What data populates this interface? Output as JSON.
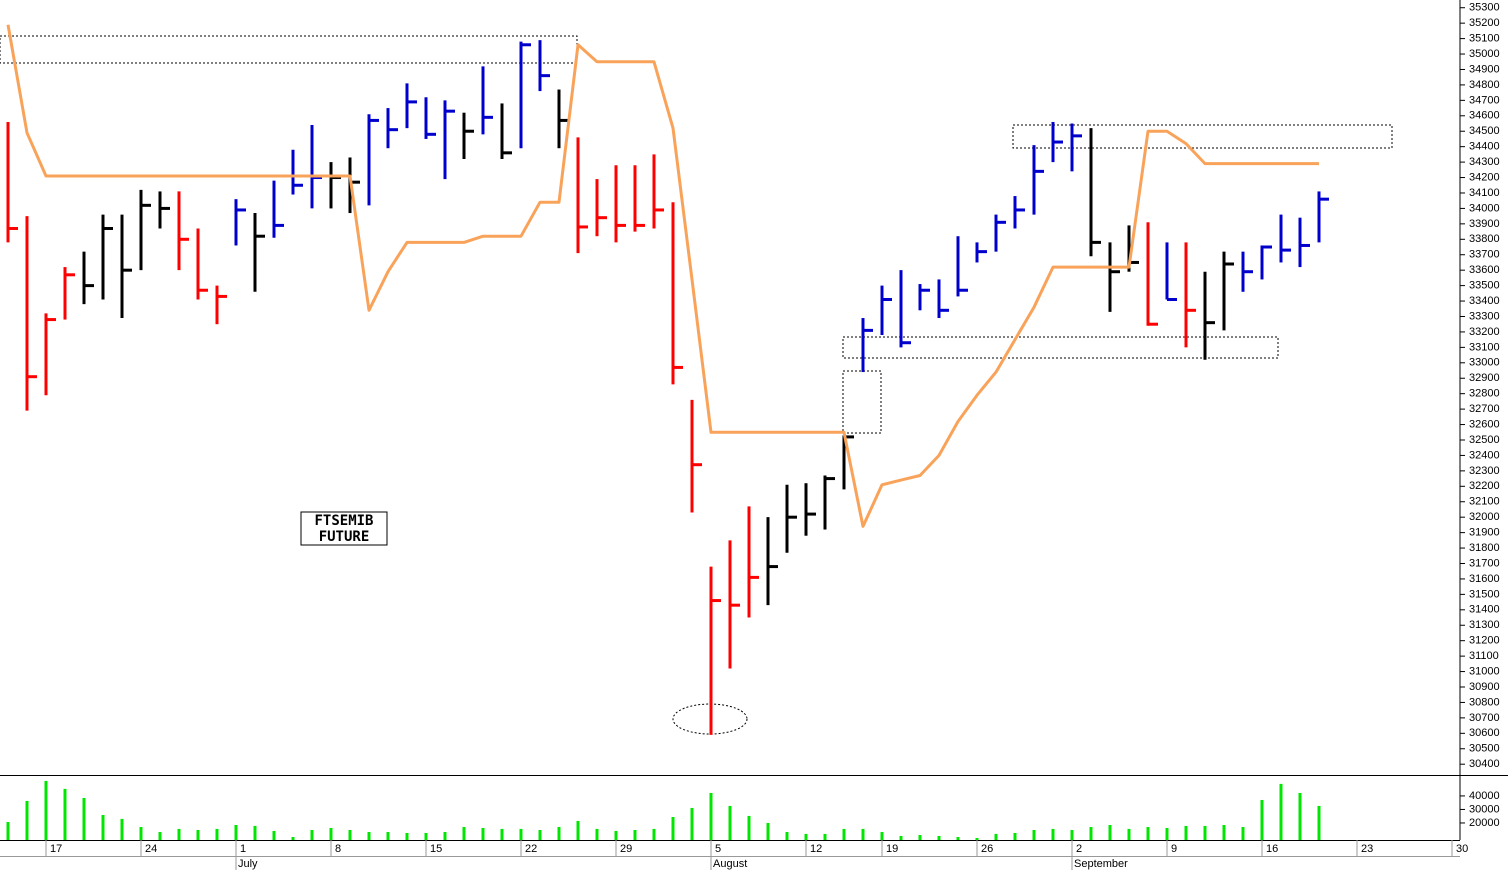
{
  "chart_data": [
    {
      "type": "ohlc",
      "annotation": [
        "FTSEMIB",
        "FUTURE"
      ],
      "categories": [
        null,
        null,
        "17",
        null,
        null,
        null,
        null,
        "24",
        null,
        null,
        null,
        null,
        "1",
        null,
        null,
        null,
        null,
        "8",
        null,
        null,
        null,
        null,
        "15",
        null,
        null,
        null,
        null,
        "22",
        null,
        null,
        null,
        null,
        "29",
        null,
        null,
        null,
        null,
        "5",
        null,
        null,
        null,
        null,
        "12",
        null,
        null,
        null,
        "19",
        null,
        null,
        null,
        null,
        "26",
        null,
        null,
        null,
        null,
        "2",
        null,
        null,
        null,
        null,
        "9",
        null,
        null,
        null,
        null,
        "16",
        null,
        null,
        null,
        null,
        "23",
        null,
        null,
        null,
        null,
        "30"
      ],
      "month_labels": [
        null,
        null,
        null,
        null,
        null,
        null,
        null,
        null,
        null,
        null,
        null,
        null,
        "July",
        null,
        null,
        null,
        null,
        null,
        null,
        null,
        null,
        null,
        null,
        null,
        null,
        null,
        null,
        null,
        null,
        null,
        null,
        null,
        null,
        null,
        null,
        null,
        null,
        "August",
        null,
        null,
        null,
        null,
        null,
        null,
        null,
        null,
        null,
        null,
        null,
        null,
        null,
        null,
        null,
        null,
        null,
        null,
        "September",
        null,
        null,
        null,
        null,
        null,
        null,
        null,
        null,
        null,
        null,
        null,
        null,
        null,
        null,
        null,
        null,
        null,
        null,
        null
      ],
      "high": [
        34560,
        33950,
        33320,
        33620,
        33720,
        33960,
        33960,
        34120,
        34110,
        34110,
        33870,
        33500,
        34060,
        33970,
        34180,
        34380,
        34540,
        34300,
        34330,
        34610,
        34650,
        34810,
        34720,
        34700,
        34620,
        34920,
        34680,
        35080,
        35090,
        34770,
        34460,
        34190,
        34280,
        34280,
        34350,
        34040,
        32760,
        31680,
        31850,
        32070,
        32000,
        32210,
        32220,
        32270,
        32530,
        33290,
        33500,
        33600,
        33510,
        33540,
        33820,
        33780,
        33960,
        34080,
        34410,
        34560,
        34550,
        34520,
        33780,
        33890,
        33910,
        33780,
        33780,
        33590,
        33720,
        33720,
        33760,
        33960,
        33940,
        34110,
        null,
        null,
        null,
        null,
        null,
        null,
        null
      ],
      "low": [
        33780,
        32690,
        32790,
        33280,
        33380,
        33410,
        33290,
        33600,
        33870,
        33600,
        33410,
        33250,
        33760,
        33460,
        33810,
        34090,
        34000,
        34000,
        33970,
        34020,
        34390,
        34520,
        34450,
        34190,
        34320,
        34480,
        34320,
        34390,
        34760,
        34390,
        33710,
        33820,
        33780,
        33850,
        33870,
        32860,
        32030,
        30590,
        31020,
        31350,
        31430,
        31770,
        31880,
        31920,
        32180,
        32940,
        33180,
        33100,
        33340,
        33290,
        33430,
        33650,
        33720,
        33870,
        33960,
        34300,
        34240,
        33690,
        33330,
        33590,
        33240,
        33410,
        33100,
        33020,
        33210,
        33460,
        33540,
        33650,
        33620,
        33780,
        null,
        null,
        null,
        null,
        null,
        null,
        null
      ],
      "close": [
        33870,
        32910,
        33280,
        33570,
        33500,
        33870,
        33600,
        34020,
        34000,
        33800,
        33470,
        33430,
        33990,
        33820,
        33890,
        34150,
        34200,
        34200,
        34170,
        34570,
        34510,
        34690,
        34480,
        34630,
        34500,
        34590,
        34360,
        35060,
        34860,
        34570,
        33880,
        33940,
        33890,
        33890,
        33990,
        32970,
        32340,
        31460,
        31430,
        31610,
        31680,
        32000,
        32020,
        32250,
        32520,
        33210,
        33410,
        33130,
        33470,
        33340,
        33470,
        33720,
        33910,
        33990,
        34240,
        34430,
        34470,
        33780,
        33590,
        33650,
        33250,
        33410,
        33340,
        33260,
        33640,
        33590,
        33750,
        33730,
        33760,
        34060,
        null,
        null,
        null,
        null,
        null,
        null,
        null
      ],
      "colors": [
        "#ff0000",
        "#ff0000",
        "#ff0000",
        "#ff0000",
        "#000000",
        "#000000",
        "#000000",
        "#000000",
        "#000000",
        "#ff0000",
        "#ff0000",
        "#ff0000",
        "#0000cc",
        "#000000",
        "#0000cc",
        "#0000cc",
        "#0000cc",
        "#000000",
        "#000000",
        "#0000cc",
        "#0000cc",
        "#0000cc",
        "#0000cc",
        "#0000cc",
        "#000000",
        "#0000cc",
        "#000000",
        "#0000cc",
        "#0000cc",
        "#000000",
        "#ff0000",
        "#ff0000",
        "#ff0000",
        "#ff0000",
        "#ff0000",
        "#ff0000",
        "#ff0000",
        "#ff0000",
        "#ff0000",
        "#ff0000",
        "#000000",
        "#000000",
        "#000000",
        "#000000",
        "#000000",
        "#0000cc",
        "#0000cc",
        "#0000cc",
        "#0000cc",
        "#0000cc",
        "#0000cc",
        "#0000cc",
        "#0000cc",
        "#0000cc",
        "#0000cc",
        "#0000cc",
        "#0000cc",
        "#000000",
        "#000000",
        "#000000",
        "#ff0000",
        "#0000cc",
        "#ff0000",
        "#000000",
        "#000000",
        "#0000cc",
        "#0000cc",
        "#0000cc",
        "#0000cc",
        "#0000cc",
        null,
        null,
        null,
        null,
        null,
        null,
        null
      ],
      "line": {
        "color": "#f9a35a",
        "values": [
          35190,
          34490,
          34210,
          34210,
          34210,
          34210,
          34210,
          34210,
          34210,
          34210,
          34210,
          34210,
          34210,
          34210,
          34210,
          34210,
          34210,
          34210,
          34210,
          33340,
          33590,
          33780,
          33780,
          33780,
          33780,
          33820,
          33820,
          33820,
          34040,
          34040,
          35060,
          34950,
          34950,
          34950,
          34950,
          34520,
          33540,
          32550,
          32550,
          32550,
          32550,
          32550,
          32550,
          32550,
          32550,
          31940,
          32210,
          32240,
          32270,
          32400,
          32620,
          32790,
          32940,
          33150,
          33360,
          33620,
          33620,
          33620,
          33620,
          33620,
          34500,
          34500,
          34420,
          34290,
          34290,
          34290,
          34290,
          34290,
          34290,
          34290,
          null,
          null,
          null,
          null,
          null,
          null,
          null
        ]
      },
      "ylim": [
        30330,
        35350
      ],
      "yticks": [
        30400,
        30500,
        30600,
        30700,
        30800,
        30900,
        31000,
        31100,
        31200,
        31300,
        31400,
        31500,
        31600,
        31700,
        31800,
        31900,
        32000,
        32100,
        32200,
        32300,
        32400,
        32500,
        32600,
        32700,
        32800,
        32900,
        33000,
        33100,
        33200,
        33300,
        33400,
        33500,
        33600,
        33700,
        33800,
        33900,
        34000,
        34100,
        34200,
        34300,
        34400,
        34500,
        34600,
        34700,
        34800,
        34900,
        35000,
        35100,
        35200,
        35300
      ]
    },
    {
      "type": "bar",
      "color": "#00e600",
      "values": [
        20700,
        36300,
        51100,
        45200,
        38500,
        25900,
        23000,
        17000,
        13300,
        15600,
        14800,
        15600,
        18500,
        17800,
        14100,
        9600,
        14800,
        16300,
        14800,
        13300,
        13300,
        12600,
        12600,
        13300,
        17000,
        16300,
        15600,
        15600,
        14800,
        17000,
        21500,
        15600,
        14100,
        14800,
        15600,
        24400,
        31100,
        42200,
        32600,
        25200,
        20000,
        13300,
        11900,
        11900,
        15600,
        15600,
        13300,
        10400,
        11100,
        10400,
        9600,
        8900,
        11900,
        12600,
        14800,
        15600,
        14800,
        17000,
        18500,
        15600,
        17000,
        16300,
        17800,
        17800,
        18500,
        17000,
        37000,
        48900,
        42200,
        32600,
        null,
        null,
        null,
        null,
        null,
        null,
        null
      ],
      "ylim": [
        7400,
        54000
      ],
      "yticks": [
        20000,
        30000,
        40000
      ]
    }
  ]
}
